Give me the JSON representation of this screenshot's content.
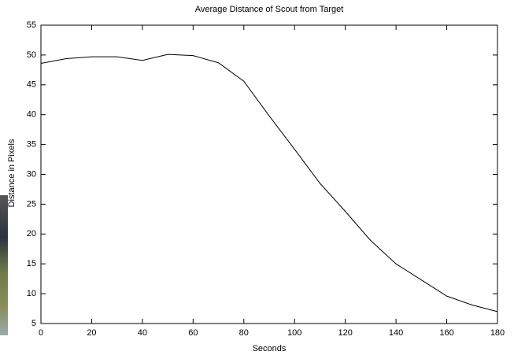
{
  "chart_data": {
    "type": "line",
    "title": "Average Distance of Scout from Target",
    "x_label": "Seconds",
    "y_label": "Distance in Pixels",
    "x": [
      0,
      10,
      20,
      30,
      40,
      50,
      60,
      70,
      80,
      90,
      100,
      110,
      120,
      130,
      140,
      150,
      160,
      170,
      180
    ],
    "series": [
      {
        "color": "#000000",
        "values": [
          48.6,
          49.4,
          49.7,
          49.7,
          49.1,
          50.1,
          49.9,
          48.7,
          45.6,
          39.8,
          34.2,
          28.5,
          23.8,
          18.9,
          15.0,
          12.3,
          9.6,
          8.1,
          7.0
        ]
      }
    ],
    "xlim": [
      0,
      180
    ],
    "xticks": [
      0,
      20,
      40,
      60,
      80,
      100,
      120,
      140,
      160,
      180
    ],
    "ylim": [
      5,
      55
    ],
    "yticks": [
      5,
      10,
      15,
      20,
      25,
      30,
      35,
      40,
      45,
      50,
      55
    ],
    "grid": false
  }
}
